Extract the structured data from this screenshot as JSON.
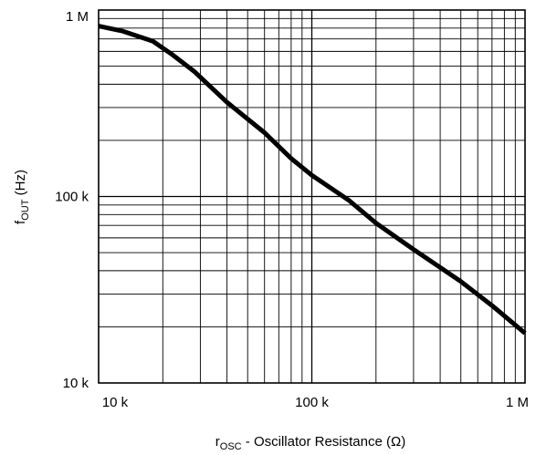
{
  "chart_data": {
    "type": "line",
    "title": "",
    "x_scale": "log",
    "y_scale": "log",
    "xlim": [
      10000,
      1000000
    ],
    "ylim": [
      10000,
      1000000
    ],
    "grid": true,
    "xlabel": {
      "main": "r",
      "subscript": "OSC",
      "rest": " - Oscillator Resistance (Ω)"
    },
    "ylabel": {
      "main": "f",
      "subscript": "OUT",
      "rest": " (Hz)"
    },
    "x_ticks": [
      {
        "value": 10000,
        "label": "10 k"
      },
      {
        "value": 100000,
        "label": "100 k"
      },
      {
        "value": 1000000,
        "label": "1 M"
      }
    ],
    "y_ticks": [
      {
        "value": 10000,
        "label": "10 k"
      },
      {
        "value": 100000,
        "label": "100 k"
      },
      {
        "value": 1000000,
        "label": "1 M"
      }
    ],
    "series": [
      {
        "color": "#000000",
        "points": [
          {
            "x": 10000,
            "y": 820000
          },
          {
            "x": 13000,
            "y": 770000
          },
          {
            "x": 18000,
            "y": 680000
          },
          {
            "x": 22000,
            "y": 580000
          },
          {
            "x": 28000,
            "y": 470000
          },
          {
            "x": 40000,
            "y": 320000
          },
          {
            "x": 60000,
            "y": 220000
          },
          {
            "x": 80000,
            "y": 160000
          },
          {
            "x": 100000,
            "y": 130000
          },
          {
            "x": 150000,
            "y": 95000
          },
          {
            "x": 200000,
            "y": 72000
          },
          {
            "x": 300000,
            "y": 52000
          },
          {
            "x": 500000,
            "y": 35000
          },
          {
            "x": 700000,
            "y": 26000
          },
          {
            "x": 1000000,
            "y": 18500
          }
        ]
      }
    ]
  }
}
